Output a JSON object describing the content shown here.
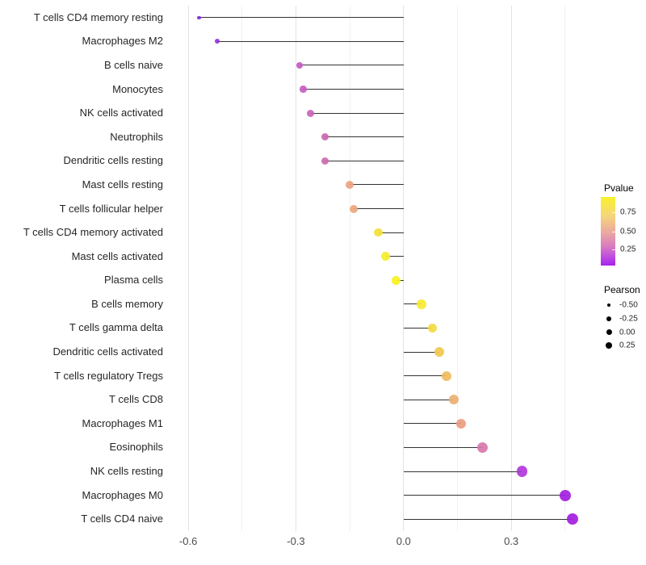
{
  "chart_data": {
    "type": "lollipop",
    "orientation": "horizontal",
    "title": "",
    "xlabel": "",
    "ylabel": "",
    "grid": "vertical-only",
    "stem_color": "#333333",
    "xlim": [
      -0.652,
      0.518
    ],
    "x_ticks": [
      {
        "value": -0.6,
        "label": "-0.6"
      },
      {
        "value": -0.3,
        "label": "-0.3"
      },
      {
        "value": 0.0,
        "label": "0.0"
      },
      {
        "value": 0.3,
        "label": "0.3"
      }
    ],
    "x_minor_ticks": [
      -0.45,
      -0.15,
      0.15,
      0.45
    ],
    "rows": [
      {
        "label": "T cells CD4 memory resting",
        "pearson": -0.57,
        "color": "#8629dd",
        "size": 4.5
      },
      {
        "label": "Macrophages M2",
        "pearson": -0.52,
        "color": "#9332df",
        "size": 6
      },
      {
        "label": "B cells naive",
        "pearson": -0.29,
        "color": "#c35bc4",
        "size": 8.5
      },
      {
        "label": "Monocytes",
        "pearson": -0.28,
        "color": "#c45dc3",
        "size": 8.5
      },
      {
        "label": "NK cells activated",
        "pearson": -0.26,
        "color": "#c964bb",
        "size": 9
      },
      {
        "label": "Neutrophils",
        "pearson": -0.22,
        "color": "#cb68b0",
        "size": 9
      },
      {
        "label": "Dendritic cells resting",
        "pearson": -0.22,
        "color": "#cc6aae",
        "size": 9
      },
      {
        "label": "Mast cells resting",
        "pearson": -0.15,
        "color": "#eca480",
        "size": 10
      },
      {
        "label": "T cells follicular helper",
        "pearson": -0.14,
        "color": "#eba77c",
        "size": 10
      },
      {
        "label": "T cells CD4 memory activated",
        "pearson": -0.07,
        "color": "#f2e13a",
        "size": 10.5
      },
      {
        "label": "Mast cells activated",
        "pearson": -0.05,
        "color": "#f6eb2b",
        "size": 11
      },
      {
        "label": "Plasma cells",
        "pearson": -0.02,
        "color": "#f9f21f",
        "size": 11
      },
      {
        "label": "B cells memory",
        "pearson": 0.05,
        "color": "#f6ea31",
        "size": 11.5
      },
      {
        "label": "T cells gamma delta",
        "pearson": 0.08,
        "color": "#f3da41",
        "size": 11.5
      },
      {
        "label": "Dendritic cells activated",
        "pearson": 0.1,
        "color": "#f0c94e",
        "size": 12
      },
      {
        "label": "T cells regulatory  Tregs",
        "pearson": 0.12,
        "color": "#eebc5e",
        "size": 12
      },
      {
        "label": "T cells CD8",
        "pearson": 0.14,
        "color": "#ecb06f",
        "size": 12
      },
      {
        "label": "Macrophages M1",
        "pearson": 0.16,
        "color": "#eb9d80",
        "size": 12.5
      },
      {
        "label": "Eosinophils",
        "pearson": 0.22,
        "color": "#d877ab",
        "size": 13
      },
      {
        "label": "NK cells resting",
        "pearson": 0.33,
        "color": "#b138dc",
        "size": 13.5
      },
      {
        "label": "Macrophages M0",
        "pearson": 0.45,
        "color": "#a21fe0",
        "size": 14
      },
      {
        "label": "T cells CD4 naive",
        "pearson": 0.47,
        "color": "#a31de1",
        "size": 14
      }
    ],
    "legend": {
      "pvalue": {
        "title": "Pvalue",
        "tick_labels": [
          "0.75",
          "0.50",
          "0.25"
        ],
        "tick_positions": [
          0.22,
          0.5,
          0.76
        ],
        "gradient_stops": [
          "#f9f22b 0%",
          "#f5d57c 28%",
          "#eba8a0 52%",
          "#d87cc0 72%",
          "#bd4ae0 88%",
          "#a622ec 100%"
        ]
      },
      "pearson": {
        "title": "Pearson",
        "dot_color": "#000000",
        "entries": [
          {
            "label": "-0.50",
            "size": 4
          },
          {
            "label": "-0.25",
            "size": 6
          },
          {
            "label": "0.00",
            "size": 7
          },
          {
            "label": "0.25",
            "size": 8
          }
        ]
      }
    }
  }
}
